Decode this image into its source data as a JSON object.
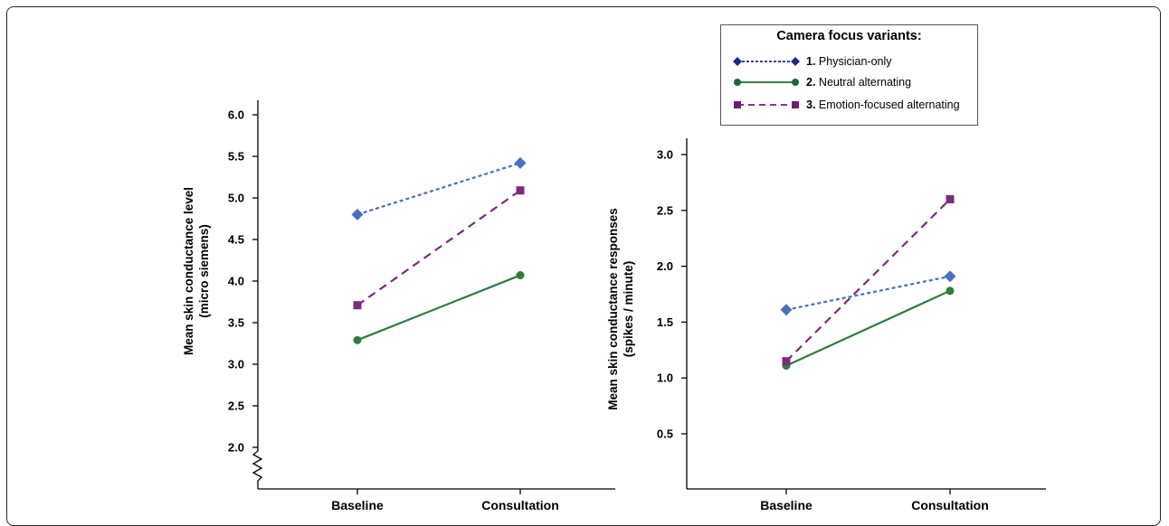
{
  "legend": {
    "title": "Camera focus variants:",
    "items": [
      {
        "num": "1.",
        "label": "Physician-only",
        "color": "#4a6fbf",
        "marker": "diamond",
        "dash": "dotted"
      },
      {
        "num": "2.",
        "label": "Neutral alternating",
        "color": "#2e7d3a",
        "marker": "circle",
        "dash": "solid"
      },
      {
        "num": "3.",
        "label": "Emotion-focused alternating",
        "color": "#7b2a7e",
        "marker": "square",
        "dash": "dashed"
      }
    ],
    "legend_marker_colors": [
      "#1a2a8c",
      "#1b6b2a",
      "#6a1f70"
    ]
  },
  "chart_data": [
    {
      "type": "line",
      "ylabel": "Mean skin conductance level",
      "ylabel_sub": "(micro siemens)",
      "xlabel": "",
      "categories": [
        "Baseline",
        "Consultation"
      ],
      "yticks": [
        "2.0",
        "2.5",
        "3.0",
        "3.5",
        "4.0",
        "4.5",
        "5.0",
        "5.5",
        "6.0"
      ],
      "ylim": [
        2.0,
        6.0
      ],
      "axis_break": true,
      "grid": false,
      "series": [
        {
          "name": "Physician-only",
          "values": [
            4.8,
            5.42
          ]
        },
        {
          "name": "Neutral alternating",
          "values": [
            3.29,
            4.07
          ]
        },
        {
          "name": "Emotion-focused alternating",
          "values": [
            3.71,
            5.09
          ]
        }
      ]
    },
    {
      "type": "line",
      "ylabel": "Mean skin conductance responses",
      "ylabel_sub": "(spikes / minute)",
      "xlabel": "",
      "categories": [
        "Baseline",
        "Consultation"
      ],
      "yticks": [
        "0.5",
        "1.0",
        "1.5",
        "2.0",
        "2.5",
        "3.0"
      ],
      "ylim": [
        0.5,
        3.0
      ],
      "axis_break": false,
      "grid": false,
      "series": [
        {
          "name": "Physician-only",
          "values": [
            1.61,
            1.91
          ]
        },
        {
          "name": "Neutral alternating",
          "values": [
            1.11,
            1.78
          ]
        },
        {
          "name": "Emotion-focused alternating",
          "values": [
            1.15,
            2.6
          ]
        }
      ]
    }
  ]
}
